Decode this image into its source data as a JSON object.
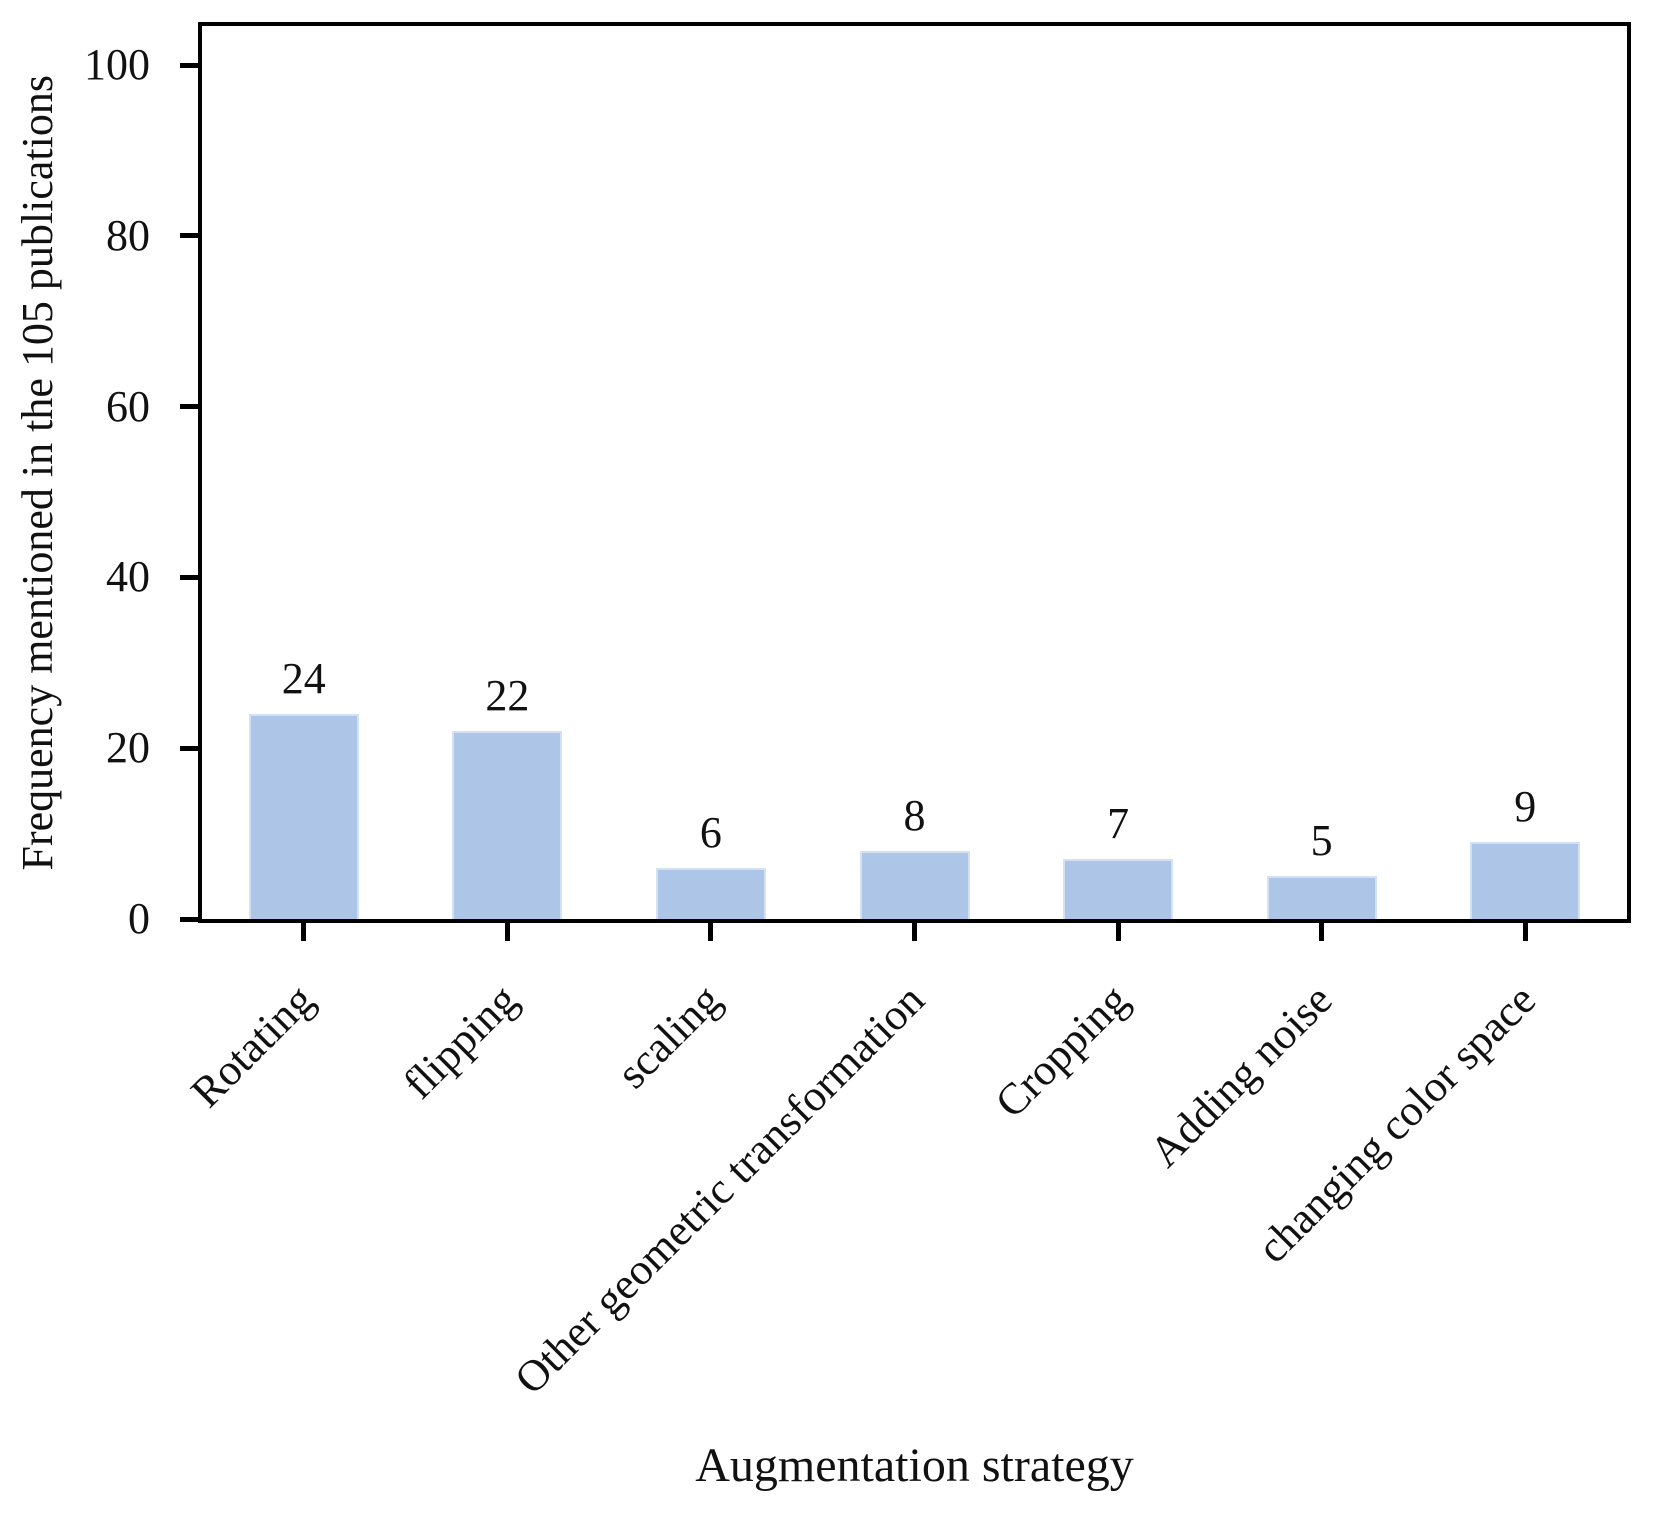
{
  "chart_data": {
    "type": "bar",
    "title": "",
    "xlabel": "Augmentation strategy",
    "ylabel": "Frequency mentioned in the 105 publications",
    "categories": [
      "Rotating",
      "flipping",
      "scaling",
      "Other geometric transformation",
      "Cropping",
      "Adding noise",
      "changing color space"
    ],
    "values": [
      24,
      22,
      6,
      8,
      7,
      5,
      9
    ],
    "yticks": [
      0,
      20,
      40,
      60,
      80,
      100
    ],
    "ylim": [
      0,
      105
    ],
    "x_tick_rotation_deg": 45,
    "grid": false,
    "legend": false,
    "show_value_labels": true,
    "bar_color": "#adc6e8",
    "bar_edge_color": "#d4e1f3",
    "axis_color": "#000000",
    "text_color": "#111111",
    "background_color": "#ffffff"
  }
}
